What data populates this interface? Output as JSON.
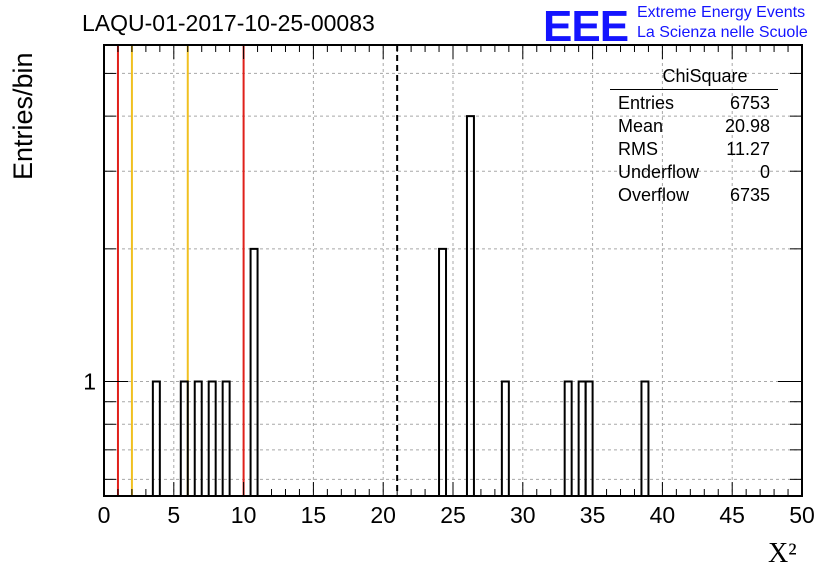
{
  "chart_data": {
    "type": "bar",
    "title": "LAQU-01-2017-10-25-00083",
    "xlabel": "X²",
    "ylabel": "Entries/bin",
    "xlim": [
      0,
      50
    ],
    "ylim_log": [
      0.55,
      5.8
    ],
    "yscale": "log",
    "grid": true,
    "x_tick_labels": [
      "0",
      "5",
      "10",
      "15",
      "20",
      "25",
      "30",
      "35",
      "40",
      "45",
      "50"
    ],
    "y_tick_labels": [
      "1"
    ],
    "bin_width": 0.5,
    "bins": [
      {
        "x": 3.5,
        "value": 1
      },
      {
        "x": 5.5,
        "value": 1
      },
      {
        "x": 6.5,
        "value": 1
      },
      {
        "x": 7.5,
        "value": 1
      },
      {
        "x": 8.5,
        "value": 1
      },
      {
        "x": 10.5,
        "value": 2
      },
      {
        "x": 24.0,
        "value": 2
      },
      {
        "x": 26.0,
        "value": 4
      },
      {
        "x": 28.5,
        "value": 1
      },
      {
        "x": 33.0,
        "value": 1
      },
      {
        "x": 34.0,
        "value": 1
      },
      {
        "x": 34.5,
        "value": 1
      },
      {
        "x": 38.5,
        "value": 1
      }
    ],
    "vertical_lines": [
      {
        "x": 1.0,
        "color": "#e0201a",
        "style": "solid"
      },
      {
        "x": 2.0,
        "color": "#f0c020",
        "style": "solid"
      },
      {
        "x": 6.0,
        "color": "#f0c020",
        "style": "solid"
      },
      {
        "x": 10.0,
        "color": "#e0201a",
        "style": "solid"
      },
      {
        "x": 21.0,
        "color": "#000000",
        "style": "dashed"
      }
    ]
  },
  "stats_box": {
    "title": "ChiSquare",
    "rows": [
      {
        "label": "Entries",
        "value": "6753"
      },
      {
        "label": "Mean",
        "value": "20.98"
      },
      {
        "label": "RMS",
        "value": "11.27"
      },
      {
        "label": "Underflow",
        "value": "0"
      },
      {
        "label": "Overflow",
        "value": "6735"
      }
    ]
  },
  "logo": {
    "mark": "EEE",
    "line1": "Extreme Energy Events",
    "line2": "La Scienza nelle Scuole",
    "color": "#1414ff"
  }
}
